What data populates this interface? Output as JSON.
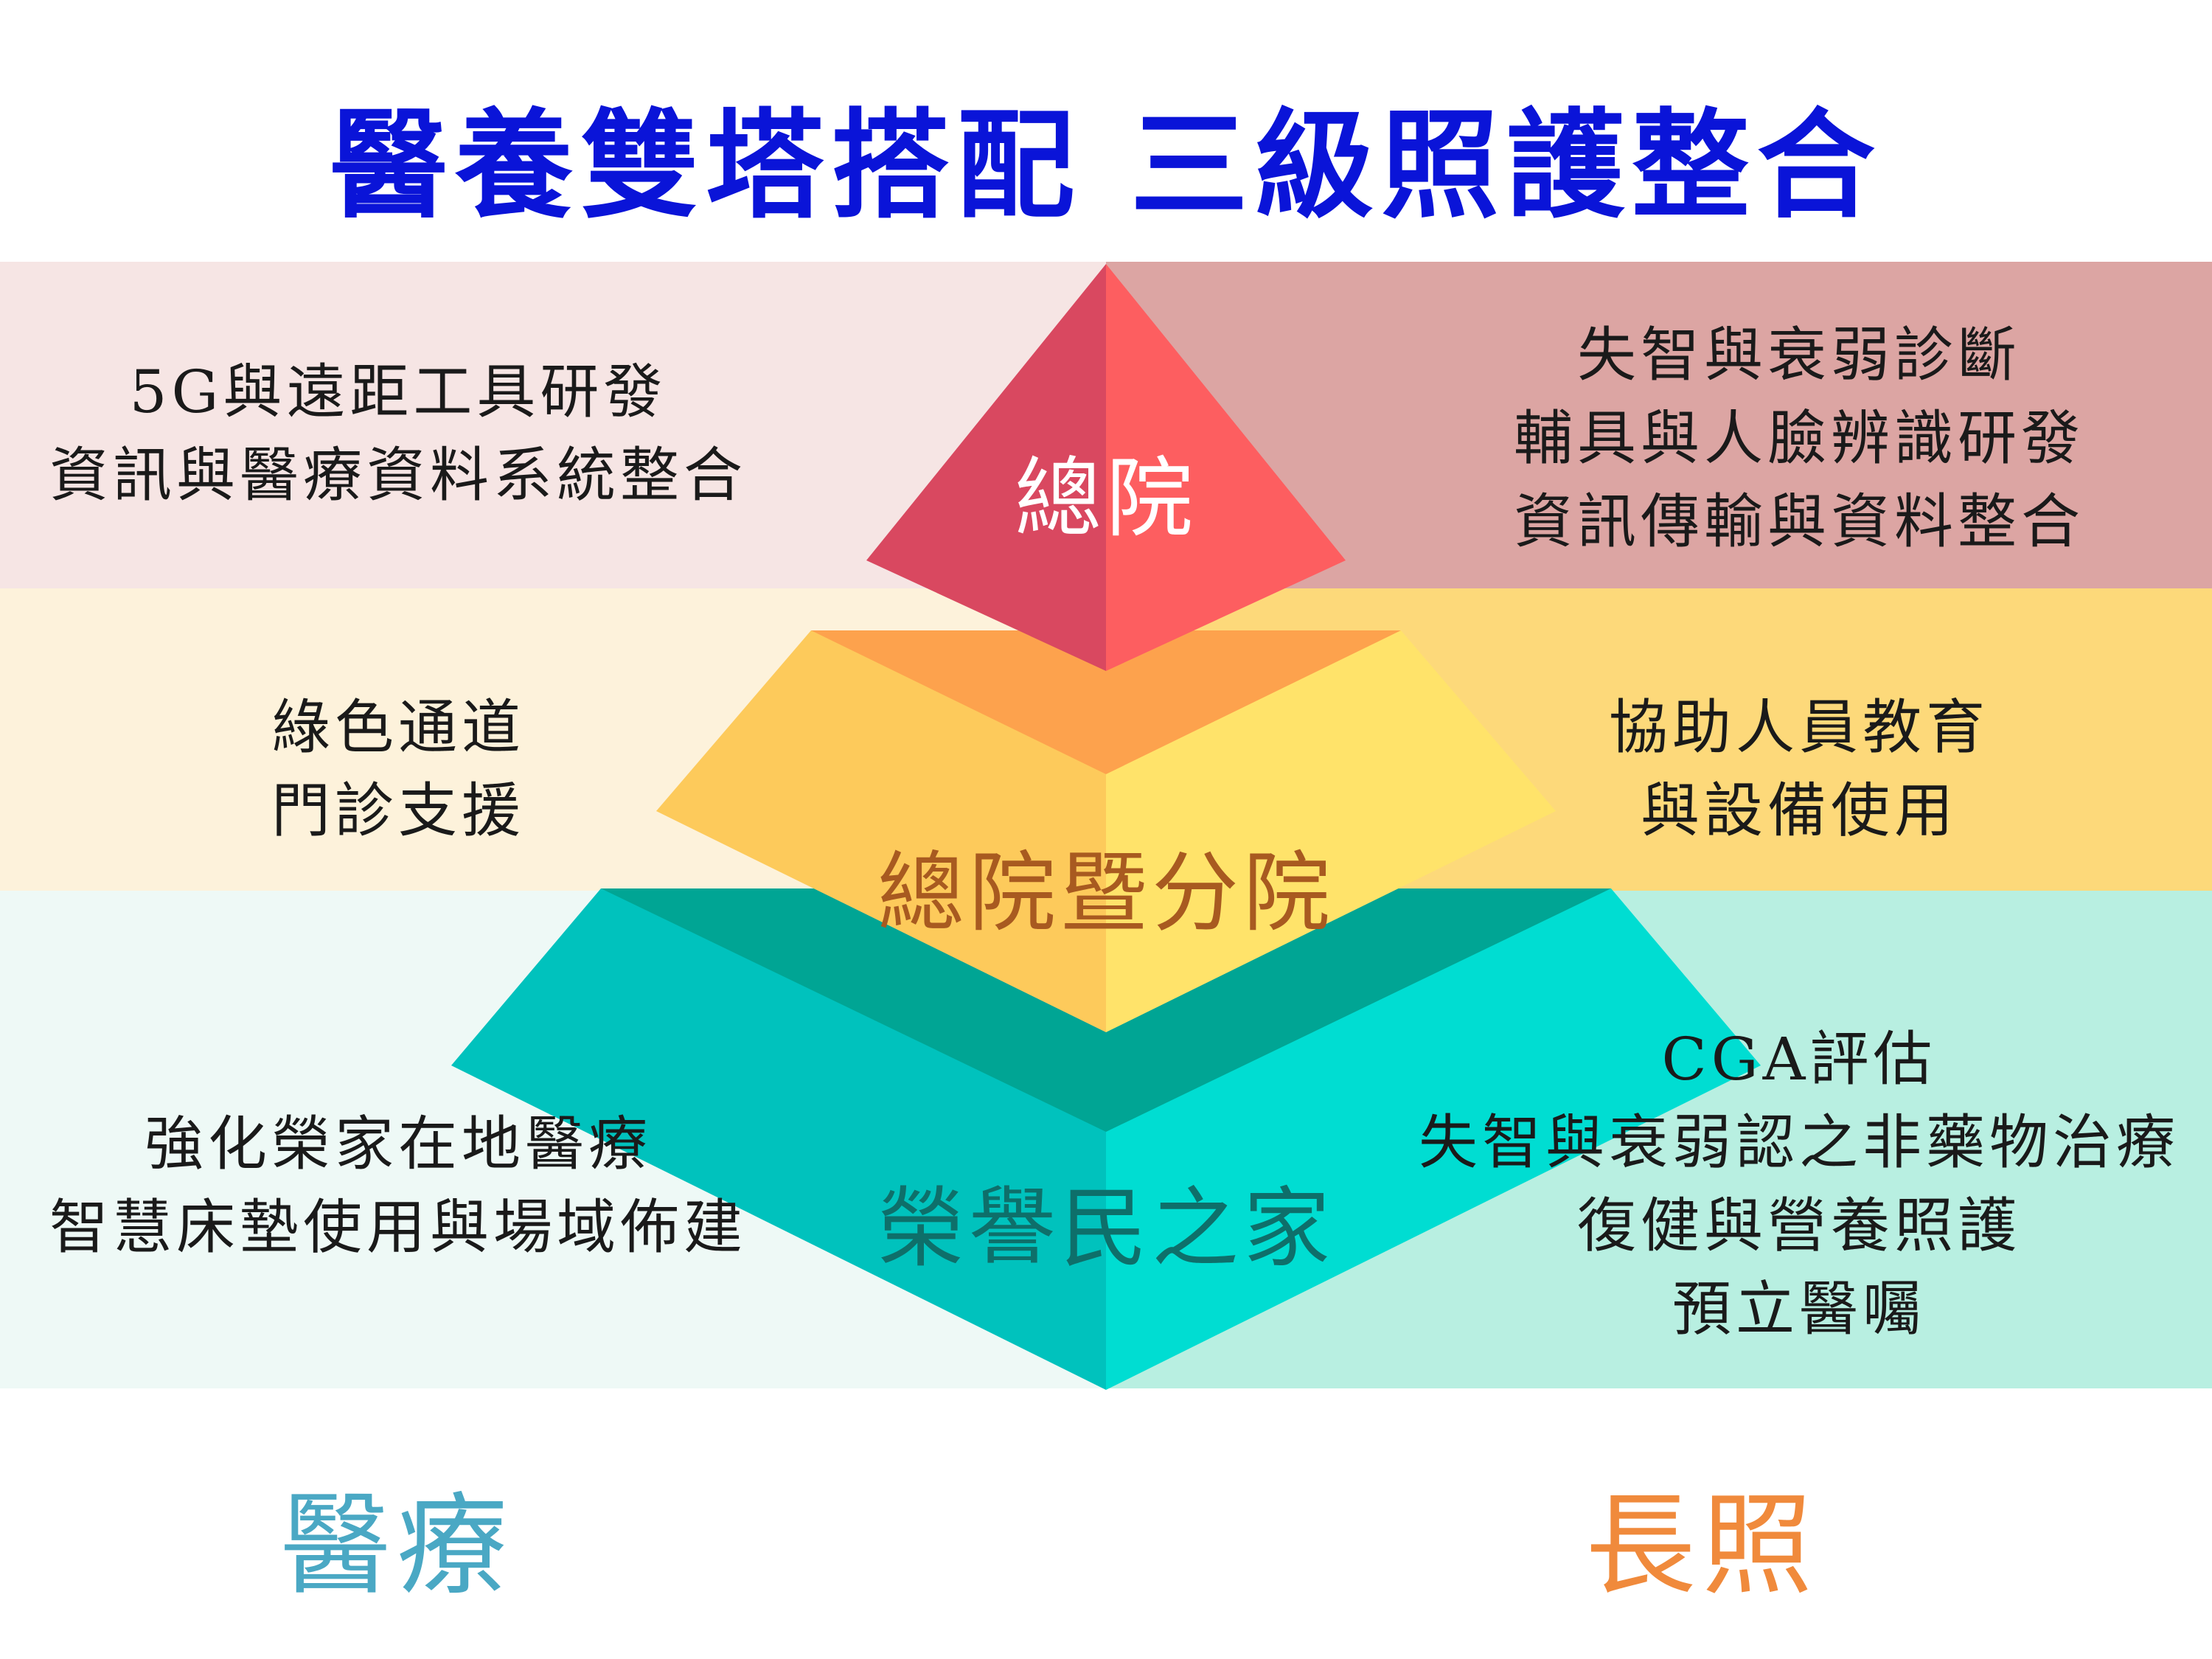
{
  "title": "醫養雙塔搭配  三級照護整合",
  "tiers": {
    "top": "總院",
    "middle": "總院暨分院",
    "bottom": "榮譽民之家"
  },
  "left": {
    "top": [
      "5G與遠距工具研發",
      "資訊與醫療資料系統整合"
    ],
    "middle": [
      "綠色通道",
      "門診支援"
    ],
    "bottom": [
      "強化榮家在地醫療",
      "智慧床墊使用與場域佈建"
    ]
  },
  "right": {
    "top": [
      "失智與衰弱診斷",
      "輔具與人臉辨識研發",
      "資訊傳輸與資料整合"
    ],
    "middle": [
      "協助人員教育",
      "與設備使用"
    ],
    "bottom": [
      "CGA評估",
      "失智與衰弱認之非藥物治療",
      "復健與營養照護",
      "預立醫囑"
    ]
  },
  "footer": {
    "left": "醫療",
    "right": "長照"
  },
  "colors": {
    "title": "#0a14d8",
    "footer_left": "#4aa8c4",
    "footer_right": "#f08a3c",
    "tier_top_label": "#ffffff",
    "tier_middle_label": "#a85a20",
    "tier_bottom_label": "#0e6f6a"
  }
}
